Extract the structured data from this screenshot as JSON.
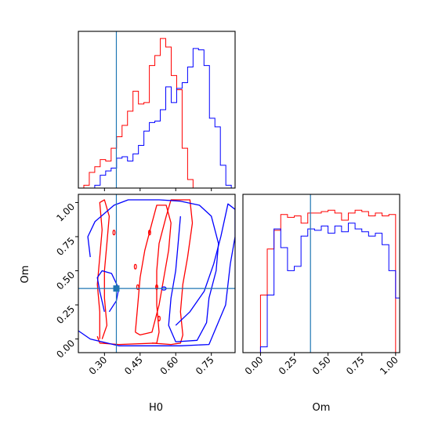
{
  "chart_data": {
    "type": "corner",
    "parameters": [
      "H0",
      "Om"
    ],
    "truth": {
      "H0": 0.35,
      "Om": 0.37
    },
    "colors": {
      "run_red": "#ff0000",
      "run_blue": "#0000ff",
      "truth": "#1f77b4"
    },
    "panels": {
      "H0_hist": {
        "xlim": [
          0.19,
          0.85
        ],
        "red": {
          "edges": [
            0.19,
            0.213,
            0.236,
            0.259,
            0.282,
            0.305,
            0.328,
            0.351,
            0.374,
            0.397,
            0.42,
            0.443,
            0.466,
            0.489,
            0.512,
            0.535,
            0.558,
            0.581,
            0.604,
            0.627,
            0.65,
            0.673,
            0.696,
            0.719,
            0.742,
            0.765,
            0.788,
            0.811,
            0.834,
            0.85
          ],
          "counts": [
            0,
            2,
            11,
            15,
            20,
            19,
            28,
            36,
            44,
            54,
            68,
            59,
            60,
            86,
            93,
            105,
            99,
            79,
            69,
            28,
            6,
            0,
            0,
            0,
            0,
            0,
            0,
            0,
            0
          ]
        },
        "blue": {
          "edges": [
            0.19,
            0.213,
            0.236,
            0.259,
            0.282,
            0.305,
            0.328,
            0.351,
            0.374,
            0.397,
            0.42,
            0.443,
            0.466,
            0.489,
            0.512,
            0.535,
            0.558,
            0.581,
            0.604,
            0.627,
            0.65,
            0.673,
            0.696,
            0.719,
            0.742,
            0.765,
            0.788,
            0.811,
            0.834,
            0.85
          ],
          "counts": [
            0,
            0,
            0,
            2,
            9,
            12,
            14,
            21,
            22,
            19,
            24,
            30,
            40,
            46,
            47,
            55,
            71,
            60,
            70,
            74,
            85,
            98,
            97,
            86,
            49,
            43,
            16,
            2,
            0
          ]
        }
      },
      "Om_hist": {
        "xlim": [
          -0.13,
          1.03
        ],
        "red": {
          "edges": [
            -0.13,
            -0.1,
            -0.05,
            0.0,
            0.05,
            0.1,
            0.15,
            0.2,
            0.25,
            0.3,
            0.35,
            0.4,
            0.45,
            0.5,
            0.55,
            0.6,
            0.65,
            0.7,
            0.75,
            0.8,
            0.85,
            0.9,
            0.95,
            1.0,
            1.03
          ],
          "counts": [
            0,
            0,
            0,
            40,
            72,
            85,
            96,
            94,
            95,
            90,
            97,
            97,
            98,
            99,
            97,
            92,
            97,
            99,
            98,
            95,
            97,
            95,
            96,
            0
          ]
        },
        "blue": {
          "edges": [
            -0.13,
            -0.1,
            -0.05,
            0.0,
            0.05,
            0.1,
            0.15,
            0.2,
            0.25,
            0.3,
            0.35,
            0.4,
            0.45,
            0.5,
            0.55,
            0.6,
            0.65,
            0.7,
            0.75,
            0.8,
            0.85,
            0.9,
            0.95,
            1.0,
            1.03
          ],
          "counts": [
            0,
            0,
            0,
            4,
            40,
            86,
            73,
            57,
            60,
            81,
            86,
            85,
            88,
            83,
            88,
            84,
            90,
            86,
            84,
            81,
            83,
            75,
            57,
            38
          ]
        }
      },
      "H0_Om_2d": {
        "xlim": [
          0.19,
          0.85
        ],
        "ylim": [
          -0.1,
          1.06
        ],
        "red_contours": [
          [
            [
              0.27,
              0.02
            ],
            [
              0.28,
              -0.03
            ],
            [
              0.36,
              -0.04
            ],
            [
              0.52,
              -0.03
            ],
            [
              0.53,
              0.05
            ],
            [
              0.52,
              0.25
            ],
            [
              0.52,
              0.5
            ],
            [
              0.53,
              0.7
            ],
            [
              0.56,
              0.9
            ],
            [
              0.58,
              1.02
            ],
            [
              0.66,
              1.02
            ],
            [
              0.67,
              0.85
            ],
            [
              0.65,
              0.6
            ],
            [
              0.63,
              0.4
            ],
            [
              0.62,
              0.2
            ],
            [
              0.63,
              0.03
            ],
            [
              0.62,
              -0.03
            ],
            [
              0.58,
              -0.04
            ],
            [
              0.5,
              -0.03
            ]
          ],
          [
            [
              0.28,
              0.0
            ],
            [
              0.28,
              0.2
            ],
            [
              0.27,
              0.4
            ],
            [
              0.28,
              0.6
            ],
            [
              0.29,
              0.8
            ],
            [
              0.28,
              1.0
            ],
            [
              0.3,
              1.02
            ],
            [
              0.32,
              0.9
            ],
            [
              0.31,
              0.7
            ],
            [
              0.3,
              0.5
            ],
            [
              0.3,
              0.3
            ],
            [
              0.31,
              0.1
            ],
            [
              0.29,
              0.0
            ]
          ],
          [
            [
              0.43,
              0.05
            ],
            [
              0.44,
              0.25
            ],
            [
              0.45,
              0.45
            ],
            [
              0.47,
              0.65
            ],
            [
              0.5,
              0.85
            ],
            [
              0.52,
              0.98
            ],
            [
              0.56,
              0.98
            ],
            [
              0.58,
              0.85
            ],
            [
              0.57,
              0.65
            ],
            [
              0.55,
              0.45
            ],
            [
              0.53,
              0.25
            ],
            [
              0.5,
              0.05
            ],
            [
              0.45,
              0.03
            ],
            [
              0.43,
              0.05
            ]
          ]
        ],
        "blue_contours": [
          [
            [
              0.19,
              0.06
            ],
            [
              0.24,
              0.0
            ],
            [
              0.36,
              -0.05
            ],
            [
              0.62,
              -0.05
            ],
            [
              0.74,
              -0.04
            ],
            [
              0.81,
              0.25
            ],
            [
              0.83,
              0.55
            ],
            [
              0.85,
              0.75
            ],
            [
              0.85,
              0.95
            ],
            [
              0.82,
              0.99
            ],
            [
              0.79,
              0.75
            ],
            [
              0.76,
              0.55
            ],
            [
              0.72,
              0.35
            ],
            [
              0.66,
              0.2
            ],
            [
              0.6,
              0.1
            ]
          ],
          [
            [
              0.24,
              0.6
            ],
            [
              0.23,
              0.75
            ],
            [
              0.26,
              0.86
            ],
            [
              0.3,
              0.92
            ],
            [
              0.34,
              0.98
            ],
            [
              0.4,
              1.02
            ],
            [
              0.53,
              1.02
            ],
            [
              0.62,
              1.01
            ],
            [
              0.7,
              0.98
            ],
            [
              0.75,
              0.9
            ],
            [
              0.78,
              0.7
            ],
            [
              0.77,
              0.5
            ],
            [
              0.74,
              0.3
            ],
            [
              0.73,
              0.12
            ],
            [
              0.69,
              -0.01
            ],
            [
              0.6,
              -0.02
            ],
            [
              0.57,
              0.1
            ],
            [
              0.58,
              0.3
            ],
            [
              0.6,
              0.5
            ],
            [
              0.61,
              0.7
            ],
            [
              0.62,
              0.9
            ]
          ],
          [
            [
              0.3,
              0.2
            ],
            [
              0.28,
              0.35
            ],
            [
              0.27,
              0.45
            ],
            [
              0.29,
              0.5
            ],
            [
              0.33,
              0.48
            ],
            [
              0.36,
              0.37
            ],
            [
              0.35,
              0.28
            ],
            [
              0.32,
              0.2
            ]
          ]
        ]
      }
    },
    "xlabel_H0": "H0",
    "xlabel_Om": "Om",
    "ylabel_Om": "Om",
    "ticks_H0": [
      "0.30",
      "0.45",
      "0.60",
      "0.75"
    ],
    "ticks_Om_x": [
      "0.00",
      "0.25",
      "0.50",
      "0.75",
      "1.00"
    ],
    "ticks_Om_y": [
      "0.00",
      "0.25",
      "0.50",
      "0.75",
      "1.00"
    ]
  }
}
